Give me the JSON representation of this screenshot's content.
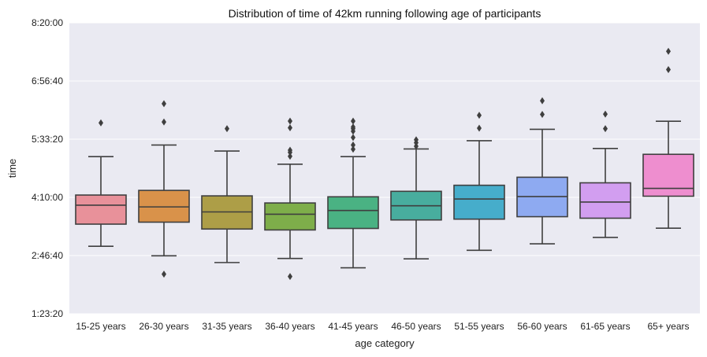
{
  "chart_data": {
    "type": "box",
    "title": "Distribution of time of 42km running following age of participants",
    "xlabel": "age category",
    "ylabel": "time",
    "ylim_seconds": [
      5000,
      30000
    ],
    "y_ticks": [
      {
        "label": "1:23:20",
        "value": 5000
      },
      {
        "label": "2:46:40",
        "value": 10000
      },
      {
        "label": "4:10:00",
        "value": 15000
      },
      {
        "label": "5:33:20",
        "value": 20000
      },
      {
        "label": "6:56:40",
        "value": 25000
      },
      {
        "label": "8:20:00",
        "value": 30000
      }
    ],
    "grid": true,
    "categories": [
      "15-25 years",
      "26-30 years",
      "31-35 years",
      "36-40 years",
      "41-45 years",
      "46-50 years",
      "51-55 years",
      "56-60 years",
      "61-65 years",
      "65+ years"
    ],
    "colors": [
      "#e8919a",
      "#d9924a",
      "#ad9e47",
      "#7eae4a",
      "#4ab283",
      "#48ad9e",
      "#46adcb",
      "#8eaaf1",
      "#d29ef0",
      "#ee8ecf"
    ],
    "boxes": [
      {
        "whisker_low": 10800,
        "q1": 12700,
        "median": 14330,
        "q3": 15200,
        "whisker_high": 18500,
        "outliers": [
          21400
        ]
      },
      {
        "whisker_low": 9980,
        "q1": 12870,
        "median": 14180,
        "q3": 15600,
        "whisker_high": 19500,
        "outliers": [
          8400,
          21480,
          23050
        ]
      },
      {
        "whisker_low": 9400,
        "q1": 12280,
        "median": 13750,
        "q3": 15130,
        "whisker_high": 18980,
        "outliers": [
          20900
        ]
      },
      {
        "whisker_low": 9750,
        "q1": 12200,
        "median": 13550,
        "q3": 14520,
        "whisker_high": 17850,
        "outliers": [
          8200,
          18530,
          18870,
          19050,
          20980,
          21550
        ]
      },
      {
        "whisker_low": 8950,
        "q1": 12330,
        "median": 13870,
        "q3": 15050,
        "whisker_high": 18500,
        "outliers": [
          19140,
          19500,
          20140,
          20680,
          20900,
          21050,
          21550
        ]
      },
      {
        "whisker_low": 9720,
        "q1": 13060,
        "median": 14280,
        "q3": 15520,
        "whisker_high": 19160,
        "outliers": [
          19390,
          19700,
          19950
        ]
      },
      {
        "whisker_low": 10450,
        "q1": 13130,
        "median": 14860,
        "q3": 16040,
        "whisker_high": 19870,
        "outliers": [
          20950,
          22050
        ]
      },
      {
        "whisker_low": 11010,
        "q1": 13340,
        "median": 15070,
        "q3": 16730,
        "whisker_high": 20850,
        "outliers": [
          22130,
          23300
        ]
      },
      {
        "whisker_low": 11560,
        "q1": 13210,
        "median": 14600,
        "q3": 16250,
        "whisker_high": 19200,
        "outliers": [
          20900,
          22150
        ]
      },
      {
        "whisker_low": 12350,
        "q1": 15100,
        "median": 15770,
        "q3": 18700,
        "whisker_high": 21540,
        "outliers": [
          25980,
          27550
        ]
      }
    ]
  }
}
